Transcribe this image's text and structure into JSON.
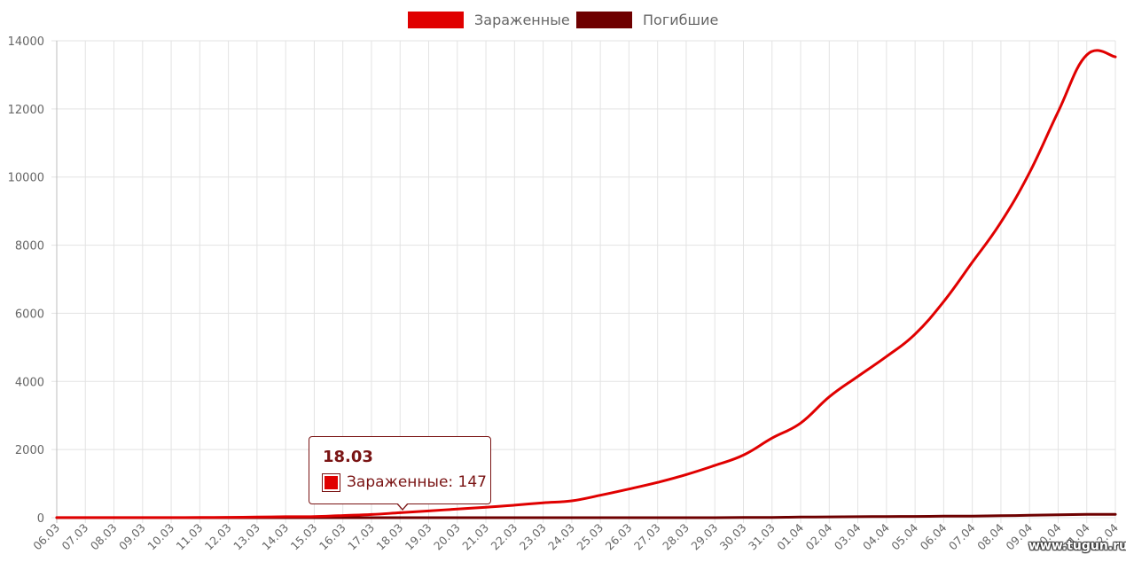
{
  "chart_data": {
    "type": "line",
    "categories": [
      "06.03",
      "07.03",
      "08.03",
      "09.03",
      "10.03",
      "11.03",
      "12.03",
      "13.03",
      "14.03",
      "15.03",
      "16.03",
      "17.03",
      "18.03",
      "19.03",
      "20.03",
      "21.03",
      "22.03",
      "23.03",
      "24.03",
      "25.03",
      "26.03",
      "27.03",
      "28.03",
      "29.03",
      "30.03",
      "31.03",
      "01.04",
      "02.04",
      "03.04",
      "04.04",
      "05.04",
      "06.04",
      "07.04",
      "08.04",
      "09.04",
      "10.04",
      "11.04",
      "12.04"
    ],
    "series": [
      {
        "name": "Зараженные",
        "color": "#e00000",
        "values": [
          2,
          2,
          2,
          3,
          3,
          5,
          10,
          17,
          28,
          34,
          63,
          93,
          147,
          199,
          253,
          306,
          367,
          438,
          495,
          658,
          840,
          1036,
          1264,
          1534,
          1836,
          2337,
          2777,
          3548,
          4149,
          4731,
          5389,
          6343,
          7497,
          8672,
          10131,
          11917,
          13584,
          13528
        ]
      },
      {
        "name": "Погибшие",
        "color": "#6e0000",
        "values": [
          0,
          0,
          0,
          0,
          0,
          0,
          0,
          0,
          0,
          0,
          0,
          0,
          0,
          0,
          0,
          0,
          0,
          0,
          0,
          1,
          1,
          1,
          1,
          1,
          4,
          8,
          17,
          24,
          29,
          34,
          37,
          43,
          48,
          56,
          71,
          86,
          95,
          97
        ]
      }
    ],
    "yticks": [
      "0",
      "2000",
      "4000",
      "6000",
      "8000",
      "10000",
      "12000",
      "14000"
    ],
    "ylim": [
      0,
      14000
    ],
    "grid": true,
    "legend_position": "top"
  },
  "tooltip": {
    "title": "18.03",
    "label": "Зараженные: 147"
  },
  "watermark": "www.tugun.ru"
}
